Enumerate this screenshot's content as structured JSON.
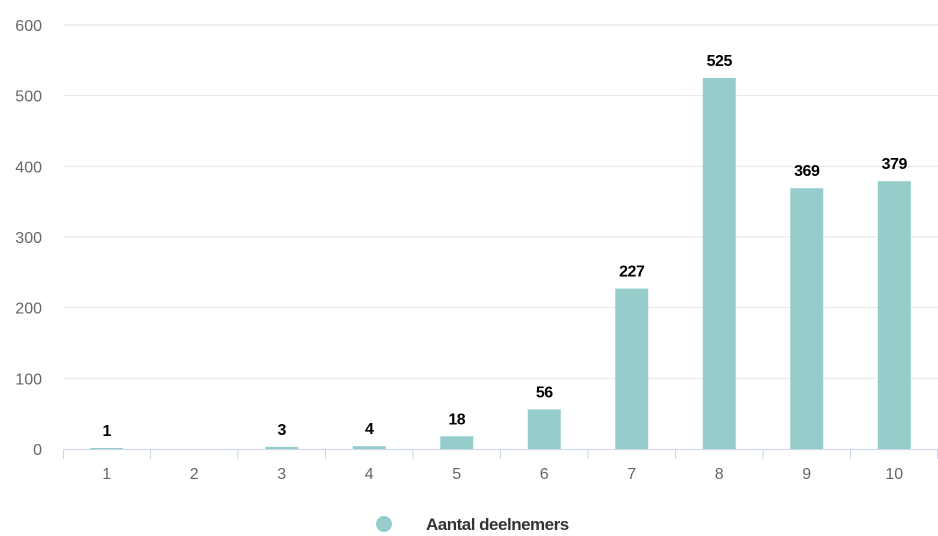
{
  "chart_data": {
    "type": "bar",
    "categories": [
      "1",
      "2",
      "3",
      "4",
      "5",
      "6",
      "7",
      "8",
      "9",
      "10"
    ],
    "series": [
      {
        "name": "Aantal deelnemers",
        "values": [
          1,
          0,
          3,
          4,
          18,
          56,
          227,
          525,
          369,
          379
        ],
        "data_labels": [
          "1",
          "",
          "3",
          "4",
          "18",
          "56",
          "227",
          "525",
          "369",
          "379"
        ]
      }
    ],
    "ylim": [
      0,
      600
    ],
    "yticks": [
      0,
      100,
      200,
      300,
      400,
      500,
      600
    ],
    "grid": true,
    "legend_position": "bottom",
    "bar_color": "#96cdca",
    "grid_color": "#e6e6e6",
    "axis_color": "#ccd6eb"
  }
}
